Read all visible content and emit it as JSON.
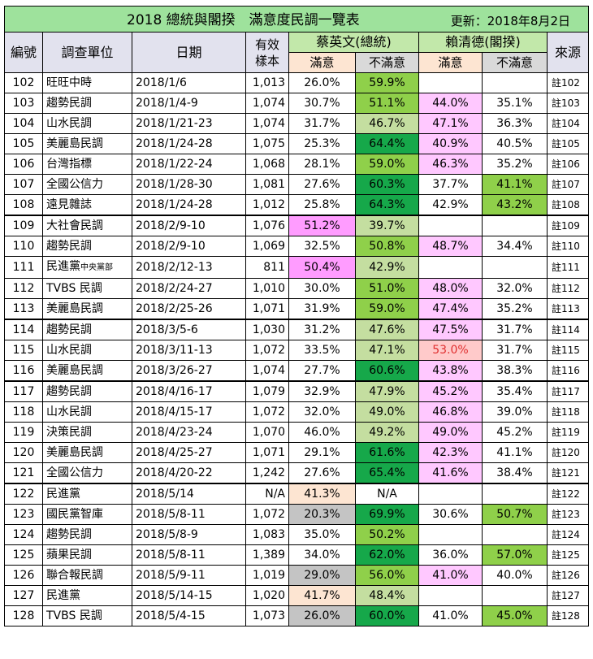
{
  "title": "2018 總統與閣揆　滿意度民調一覽表",
  "updated": "更新：2018年8月2日",
  "headers": {
    "id": "編號",
    "org": "調查單位",
    "date": "日期",
    "sample": "有效樣本",
    "tsai": "蔡英文(總統)",
    "lai": "賴清德(閣揆)",
    "source": "來源",
    "satisfied": "滿意",
    "unsatisfied": "不滿意"
  },
  "colors": {
    "dark_green": "#16a84a",
    "mid_green": "#8fd04a",
    "light_green": "#c4deA0",
    "pink": "#ffc8ff",
    "magenta": "#ff9cff",
    "peach": "#fde5d2",
    "salmon": "#ffcaca",
    "gray": "#c4c4c4"
  },
  "rows": [
    {
      "id": "102",
      "org": "旺旺中時",
      "date": "2018/1/6",
      "n": "1,013",
      "ts": "26.0%",
      "tu": "59.9%",
      "ls": "",
      "lu": "",
      "src": "註102",
      "c": [
        "",
        "mg",
        "",
        "",
        ""
      ]
    },
    {
      "id": "103",
      "org": "趨勢民調",
      "date": "2018/1/4-9",
      "n": "1,074",
      "ts": "30.7%",
      "tu": "51.1%",
      "ls": "44.0%",
      "lu": "35.1%",
      "src": "註103",
      "c": [
        "",
        "mg",
        "pk",
        ""
      ]
    },
    {
      "id": "104",
      "org": "山水民調",
      "date": "2018/1/21-23",
      "n": "1,074",
      "ts": "31.7%",
      "tu": "46.7%",
      "ls": "47.1%",
      "lu": "36.3%",
      "src": "註104",
      "c": [
        "",
        "lg",
        "pk",
        ""
      ]
    },
    {
      "id": "105",
      "org": "美麗島民調",
      "date": "2018/1/24-28",
      "n": "1,075",
      "ts": "25.3%",
      "tu": "64.4%",
      "ls": "40.9%",
      "lu": "40.5%",
      "src": "註105",
      "c": [
        "",
        "dg",
        "pk",
        ""
      ]
    },
    {
      "id": "106",
      "org": "台灣指標",
      "date": "2018/1/22-24",
      "n": "1,068",
      "ts": "28.1%",
      "tu": "59.0%",
      "ls": "46.3%",
      "lu": "35.2%",
      "src": "註106",
      "c": [
        "",
        "mg",
        "pk",
        ""
      ]
    },
    {
      "id": "107",
      "org": "全國公信力",
      "date": "2018/1/28-30",
      "n": "1,081",
      "ts": "27.6%",
      "tu": "60.3%",
      "ls": "37.7%",
      "lu": "41.1%",
      "src": "註107",
      "c": [
        "",
        "dg",
        "",
        "mg"
      ]
    },
    {
      "id": "108",
      "org": "遠見雜誌",
      "date": "2018/1/24-28",
      "n": "1,012",
      "ts": "25.8%",
      "tu": "64.3%",
      "ls": "42.9%",
      "lu": "43.2%",
      "src": "註108",
      "c": [
        "",
        "dg",
        "",
        "mg"
      ]
    },
    {
      "id": "109",
      "org": "大社會民調",
      "date": "2018/2/9-10",
      "n": "1,076",
      "ts": "51.2%",
      "tu": "39.7%",
      "ls": "",
      "lu": "",
      "src": "註109",
      "c": [
        "mag",
        "lg",
        "",
        ""
      ],
      "thick": true
    },
    {
      "id": "110",
      "org": "趨勢民調",
      "date": "2018/2/9-10",
      "n": "1,069",
      "ts": "32.5%",
      "tu": "50.8%",
      "ls": "48.7%",
      "lu": "34.4%",
      "src": "註110",
      "c": [
        "",
        "mg",
        "pk",
        ""
      ]
    },
    {
      "id": "111",
      "org": "民進黨",
      "orgsmall": "中央黨部",
      "date": "2018/2/12-13",
      "n": "811",
      "ts": "50.4%",
      "tu": "42.9%",
      "ls": "",
      "lu": "",
      "src": "註111",
      "c": [
        "mag",
        "lg",
        "",
        ""
      ]
    },
    {
      "id": "112",
      "org": "TVBS 民調",
      "date": "2018/2/24-27",
      "n": "1,010",
      "ts": "30.0%",
      "tu": "51.0%",
      "ls": "48.0%",
      "lu": "32.0%",
      "src": "註112",
      "c": [
        "",
        "mg",
        "pk",
        ""
      ]
    },
    {
      "id": "113",
      "org": "美麗島民調",
      "date": "2018/2/25-26",
      "n": "1,071",
      "ts": "31.9%",
      "tu": "59.0%",
      "ls": "47.4%",
      "lu": "35.2%",
      "src": "註113",
      "c": [
        "",
        "mg",
        "pk",
        ""
      ]
    },
    {
      "id": "114",
      "org": "趨勢民調",
      "date": "2018/3/5-6",
      "n": "1,030",
      "ts": "31.2%",
      "tu": "47.6%",
      "ls": "47.5%",
      "lu": "31.7%",
      "src": "註114",
      "c": [
        "",
        "lg",
        "pk",
        ""
      ],
      "thick": true
    },
    {
      "id": "115",
      "org": "山水民調",
      "date": "2018/3/11-13",
      "n": "1,072",
      "ts": "33.5%",
      "tu": "47.1%",
      "ls": "53.0%",
      "lu": "31.7%",
      "src": "註115",
      "c": [
        "",
        "lg",
        "sal",
        ""
      ],
      "red": true
    },
    {
      "id": "116",
      "org": "美麗島民調",
      "date": "2018/3/26-27",
      "n": "1,074",
      "ts": "27.7%",
      "tu": "60.6%",
      "ls": "43.8%",
      "lu": "38.3%",
      "src": "註116",
      "c": [
        "",
        "dg",
        "pk",
        ""
      ]
    },
    {
      "id": "117",
      "org": "趨勢民調",
      "date": "2018/4/16-17",
      "n": "1,079",
      "ts": "32.9%",
      "tu": "47.9%",
      "ls": "45.2%",
      "lu": "35.4%",
      "src": "註117",
      "c": [
        "",
        "lg",
        "pk",
        ""
      ],
      "thick": true
    },
    {
      "id": "118",
      "org": "山水民調",
      "date": "2018/4/15-17",
      "n": "1,072",
      "ts": "32.0%",
      "tu": "49.0%",
      "ls": "46.8%",
      "lu": "39.0%",
      "src": "註118",
      "c": [
        "",
        "lg",
        "pk",
        ""
      ]
    },
    {
      "id": "119",
      "org": "決策民調",
      "date": "2018/4/23-24",
      "n": "1,070",
      "ts": "46.0%",
      "tu": "49.2%",
      "ls": "49.0%",
      "lu": "45.2%",
      "src": "註119",
      "c": [
        "",
        "lg",
        "pk",
        ""
      ]
    },
    {
      "id": "120",
      "org": "美麗島民調",
      "date": "2018/4/25-27",
      "n": "1,071",
      "ts": "29.1%",
      "tu": "61.6%",
      "ls": "42.3%",
      "lu": "41.1%",
      "src": "註120",
      "c": [
        "",
        "dg",
        "pk",
        ""
      ]
    },
    {
      "id": "121",
      "org": "全國公信力",
      "date": "2018/4/20-22",
      "n": "1,242",
      "ts": "27.6%",
      "tu": "65.4%",
      "ls": "41.6%",
      "lu": "38.4%",
      "src": "註121",
      "c": [
        "",
        "dg",
        "pk",
        ""
      ]
    },
    {
      "id": "122",
      "org": "民進黨",
      "date": "2018/5/14",
      "n": "N/A",
      "ts": "41.3%",
      "tu": "N/A",
      "ls": "",
      "lu": "",
      "src": "註122",
      "c": [
        "pe",
        "",
        "",
        ""
      ],
      "thick": true,
      "tuc": true
    },
    {
      "id": "123",
      "org": "國民黨智庫",
      "date": "2018/5/8-11",
      "n": "1,072",
      "ts": "20.3%",
      "tu": "69.9%",
      "ls": "30.6%",
      "lu": "50.7%",
      "src": "註123",
      "c": [
        "gy",
        "dg",
        "",
        "mg"
      ]
    },
    {
      "id": "124",
      "org": "趨勢民調",
      "date": "2018/5/8-9",
      "n": "1,083",
      "ts": "35.0%",
      "tu": "50.2%",
      "ls": "",
      "lu": "",
      "src": "註124",
      "c": [
        "",
        "mg",
        "",
        ""
      ]
    },
    {
      "id": "125",
      "org": "蘋果民調",
      "date": "2018/5/8-11",
      "n": "1,389",
      "ts": "34.0%",
      "tu": "62.0%",
      "ls": "36.0%",
      "lu": "57.0%",
      "src": "註125",
      "c": [
        "",
        "dg",
        "",
        "mg"
      ]
    },
    {
      "id": "126",
      "org": "聯合報民調",
      "date": "2018/5/9-11",
      "n": "1,019",
      "ts": "29.0%",
      "tu": "56.0%",
      "ls": "41.0%",
      "lu": "40.0%",
      "src": "註126",
      "c": [
        "gy",
        "mg",
        "pk",
        ""
      ]
    },
    {
      "id": "127",
      "org": "民進黨",
      "date": "2018/5/14-15",
      "n": "1,020",
      "ts": "41.7%",
      "tu": "48.4%",
      "ls": "",
      "lu": "",
      "src": "註127",
      "c": [
        "pe",
        "lg",
        "",
        ""
      ]
    },
    {
      "id": "128",
      "org": "TVBS 民調",
      "date": "2018/5/4-15",
      "n": "1,073",
      "ts": "26.0%",
      "tu": "60.0%",
      "ls": "41.0%",
      "lu": "45.0%",
      "src": "註128",
      "c": [
        "gy",
        "dg",
        "",
        "mg"
      ]
    }
  ]
}
